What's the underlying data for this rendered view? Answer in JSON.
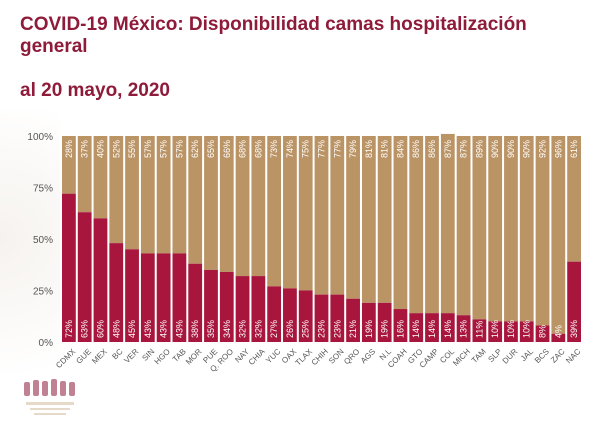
{
  "header": {
    "title": "COVID-19 México: Disponibilidad camas hospitalización general",
    "date": "al 20 mayo, 2020"
  },
  "colors": {
    "occupied": "#a8163e",
    "available": "#bb9466",
    "title": "#8e1b3a",
    "axis_text": "#555555"
  },
  "chart_data": {
    "type": "bar",
    "stacked": true,
    "categories": [
      "CDMX",
      "GUE",
      "MEX",
      "BC",
      "VER",
      "SIN",
      "HGO",
      "TAB",
      "MOR",
      "PUE",
      "Q. ROO",
      "NAY",
      "CHIA",
      "YUC",
      "OAX",
      "TLAX",
      "CHIH",
      "SON",
      "QRO",
      "AGS",
      "N.L",
      "COAH",
      "GTO",
      "CAMP",
      "COL",
      "MICH",
      "TAM",
      "SLP",
      "DUR",
      "JAL",
      "BCS",
      "ZAC",
      "NAC"
    ],
    "series": [
      {
        "values": [
          72,
          63,
          60,
          48,
          45,
          43,
          43,
          43,
          38,
          35,
          34,
          32,
          32,
          27,
          26,
          25,
          23,
          23,
          21,
          19,
          19,
          16,
          14,
          14,
          14,
          13,
          11,
          10,
          10,
          10,
          8,
          4,
          39
        ]
      },
      {
        "values": [
          28,
          37,
          40,
          52,
          55,
          57,
          57,
          57,
          62,
          65,
          66,
          68,
          68,
          73,
          74,
          75,
          77,
          77,
          79,
          81,
          81,
          84,
          86,
          86,
          87,
          87,
          89,
          90,
          90,
          90,
          92,
          96,
          61
        ]
      }
    ],
    "value_labels": {
      "occupied": [
        "72%",
        "63%",
        "60%",
        "48%",
        "45%",
        "43%",
        "43%",
        "43%",
        "38%",
        "35%",
        "34%",
        "32%",
        "32%",
        "27%",
        "26%",
        "25%",
        "23%",
        "23%",
        "21%",
        "19%",
        "19%",
        "16%",
        "14%",
        "14%",
        "14%",
        "13%",
        "11%",
        "10%",
        "10%",
        "10%",
        "8%",
        "4%",
        "39%"
      ],
      "available": [
        "28%",
        "37%",
        "40%",
        "52%",
        "55%",
        "57%",
        "57%",
        "57%",
        "62%",
        "65%",
        "66%",
        "68%",
        "68%",
        "73%",
        "74%",
        "75%",
        "77%",
        "77%",
        "79%",
        "81%",
        "81%",
        "84%",
        "86%",
        "86%",
        "87%",
        "87%",
        "89%",
        "90%",
        "90%",
        "90%",
        "92%",
        "96%",
        "61%"
      ]
    },
    "y_ticks": [
      "0%",
      "25%",
      "50%",
      "75%",
      "100%"
    ],
    "ylim": [
      0,
      100
    ],
    "grid": false
  }
}
